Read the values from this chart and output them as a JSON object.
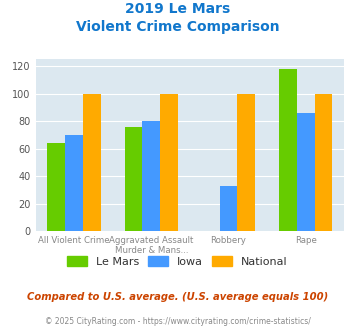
{
  "title_line1": "2019 Le Mars",
  "title_line2": "Violent Crime Comparison",
  "series": {
    "Le Mars": [
      64,
      76,
      0,
      118
    ],
    "Iowa": [
      70,
      80,
      33,
      86
    ],
    "National": [
      100,
      100,
      100,
      100
    ]
  },
  "colors": {
    "Le Mars": "#66cc00",
    "Iowa": "#4499ff",
    "National": "#ffaa00"
  },
  "xlabels_row1": [
    "All Violent Crime",
    "Aggravated Assault",
    "Robbery",
    "Rape"
  ],
  "xlabels_row2": [
    "",
    "Murder & Mans...",
    "",
    ""
  ],
  "ylim": [
    0,
    125
  ],
  "yticks": [
    0,
    20,
    40,
    60,
    80,
    100,
    120
  ],
  "footer_text": "Compared to U.S. average. (U.S. average equals 100)",
  "copyright_text": "© 2025 CityRating.com - https://www.cityrating.com/crime-statistics/",
  "title_color": "#1177cc",
  "footer_color": "#cc4400",
  "copyright_color": "#888888",
  "plot_bg_color": "#dce8f0"
}
